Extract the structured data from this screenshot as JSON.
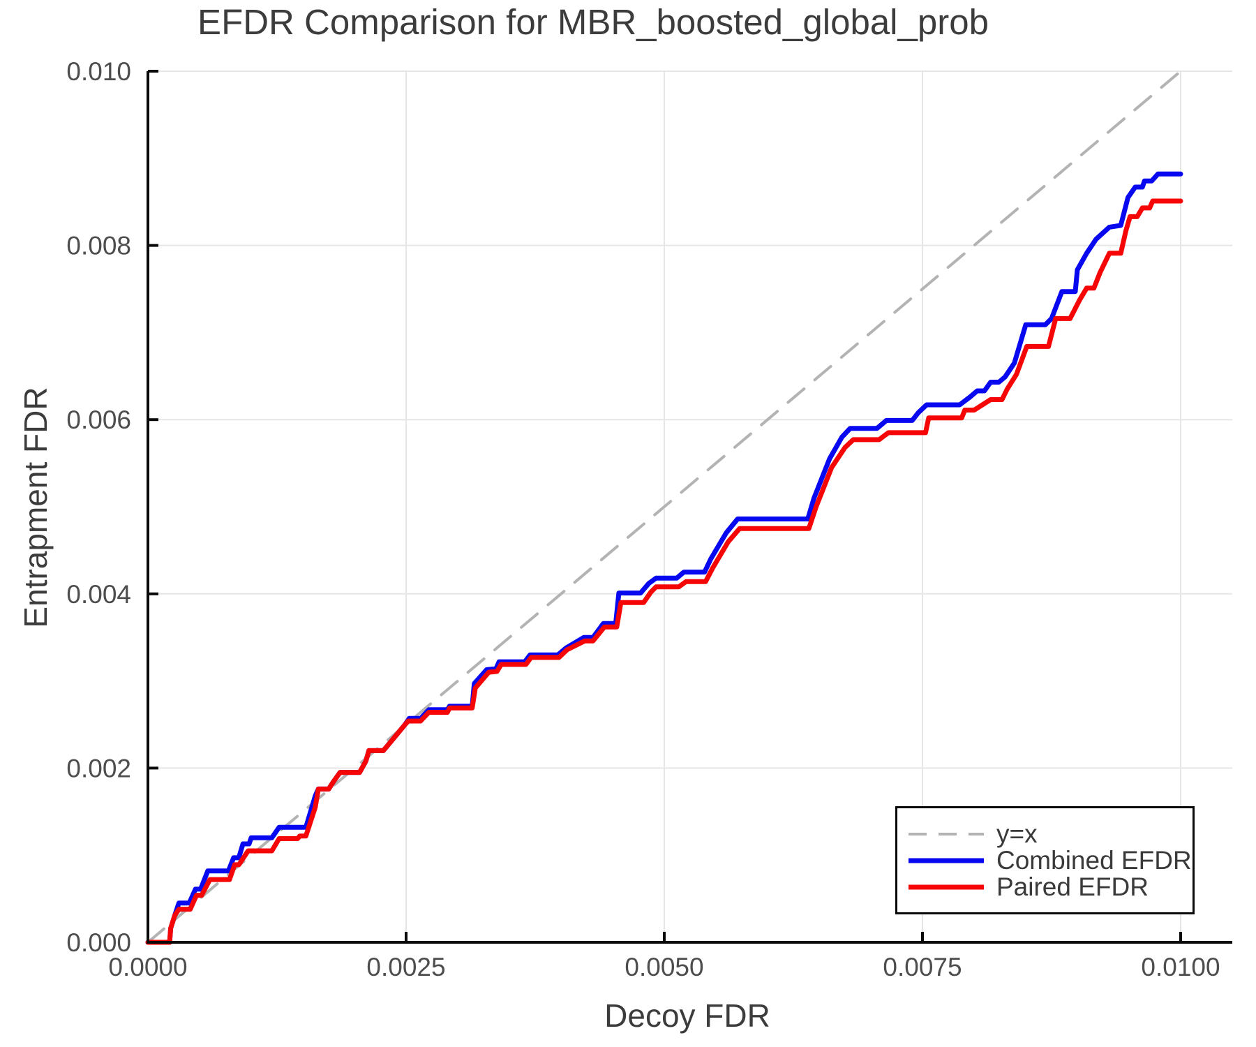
{
  "figure": {
    "background": "#ffffff",
    "text_color": "#3c3c3c",
    "tick_text_color": "#4d4d4d",
    "grid_color": "#e6e6e6",
    "spine_color": "#0a0a0a"
  },
  "chart_data": {
    "type": "line",
    "title": "EFDR Comparison for MBR_boosted_global_prob",
    "xlabel": "Decoy FDR",
    "ylabel": "Entrapment FDR",
    "xlim": [
      0,
      0.0105
    ],
    "ylim": [
      0,
      0.01
    ],
    "grid": true,
    "x_ticks": {
      "values": [
        0,
        0.0025,
        0.005,
        0.0075,
        0.01
      ],
      "labels": [
        "0.0000",
        "0.0025",
        "0.0050",
        "0.0075",
        "0.0100"
      ]
    },
    "y_ticks": {
      "values": [
        0,
        0.002,
        0.004,
        0.006,
        0.008,
        0.01
      ],
      "labels": [
        "0.000",
        "0.002",
        "0.004",
        "0.006",
        "0.008",
        "0.010"
      ]
    },
    "legend": {
      "position": "lower right",
      "entries": [
        "y=x",
        "Combined EFDR",
        "Paired EFDR"
      ]
    },
    "series": [
      {
        "name": "y=x",
        "style": "dashed",
        "color": "#b3b3b3",
        "width": 4,
        "points": [
          [
            0,
            0
          ],
          [
            0.01,
            0.01
          ]
        ]
      },
      {
        "name": "Combined EFDR",
        "style": "solid",
        "color": "#0808f0",
        "width": 7,
        "points": [
          [
            0,
            0
          ],
          [
            0.00021,
            0
          ],
          [
            0.00022,
            0.00016
          ],
          [
            0.00026,
            0.00031
          ],
          [
            0.0003,
            0.00045
          ],
          [
            0.0004,
            0.00045
          ],
          [
            0.00046,
            0.00061
          ],
          [
            0.00051,
            0.00061
          ],
          [
            0.00058,
            0.00082
          ],
          [
            0.00078,
            0.00082
          ],
          [
            0.00083,
            0.00097
          ],
          [
            0.00088,
            0.00097
          ],
          [
            0.00092,
            0.00113
          ],
          [
            0.00098,
            0.00113
          ],
          [
            0.001,
            0.0012
          ],
          [
            0.0012,
            0.0012
          ],
          [
            0.00127,
            0.00132
          ],
          [
            0.00153,
            0.00132
          ],
          [
            0.00162,
            0.00168
          ],
          [
            0.00165,
            0.00176
          ],
          [
            0.00175,
            0.00176
          ],
          [
            0.0018,
            0.00185
          ],
          [
            0.00186,
            0.00195
          ],
          [
            0.00205,
            0.00195
          ],
          [
            0.00211,
            0.00208
          ],
          [
            0.00214,
            0.0022
          ],
          [
            0.00228,
            0.0022
          ],
          [
            0.00235,
            0.0023
          ],
          [
            0.00249,
            0.0025
          ],
          [
            0.00253,
            0.00257
          ],
          [
            0.00264,
            0.00257
          ],
          [
            0.00272,
            0.00267
          ],
          [
            0.0029,
            0.00267
          ],
          [
            0.00292,
            0.00271
          ],
          [
            0.00314,
            0.00271
          ],
          [
            0.00316,
            0.00297
          ],
          [
            0.00328,
            0.00313
          ],
          [
            0.00337,
            0.00314
          ],
          [
            0.0034,
            0.00322
          ],
          [
            0.00365,
            0.00322
          ],
          [
            0.0037,
            0.0033
          ],
          [
            0.00397,
            0.0033
          ],
          [
            0.00405,
            0.00338
          ],
          [
            0.00422,
            0.0035
          ],
          [
            0.00431,
            0.0035
          ],
          [
            0.00441,
            0.00366
          ],
          [
            0.00453,
            0.00366
          ],
          [
            0.00456,
            0.00401
          ],
          [
            0.00477,
            0.00401
          ],
          [
            0.00485,
            0.00412
          ],
          [
            0.00492,
            0.00418
          ],
          [
            0.00512,
            0.00418
          ],
          [
            0.00519,
            0.00425
          ],
          [
            0.00539,
            0.00425
          ],
          [
            0.00545,
            0.0044
          ],
          [
            0.0056,
            0.0047
          ],
          [
            0.00571,
            0.00486
          ],
          [
            0.00639,
            0.00486
          ],
          [
            0.00645,
            0.0051
          ],
          [
            0.0066,
            0.00555
          ],
          [
            0.00672,
            0.0058
          ],
          [
            0.0068,
            0.0059
          ],
          [
            0.00706,
            0.0059
          ],
          [
            0.00715,
            0.00599
          ],
          [
            0.0074,
            0.00599
          ],
          [
            0.00746,
            0.00608
          ],
          [
            0.00754,
            0.00617
          ],
          [
            0.00786,
            0.00617
          ],
          [
            0.00796,
            0.00626
          ],
          [
            0.00803,
            0.00633
          ],
          [
            0.0081,
            0.00633
          ],
          [
            0.00816,
            0.00643
          ],
          [
            0.00824,
            0.00643
          ],
          [
            0.0083,
            0.00649
          ],
          [
            0.00839,
            0.00665
          ],
          [
            0.00847,
            0.00697
          ],
          [
            0.0085,
            0.00709
          ],
          [
            0.00869,
            0.00709
          ],
          [
            0.00875,
            0.00716
          ],
          [
            0.00885,
            0.00747
          ],
          [
            0.00898,
            0.00747
          ],
          [
            0.009,
            0.00772
          ],
          [
            0.00909,
            0.00791
          ],
          [
            0.00918,
            0.00807
          ],
          [
            0.00931,
            0.00821
          ],
          [
            0.00942,
            0.00823
          ],
          [
            0.00949,
            0.00855
          ],
          [
            0.00956,
            0.00867
          ],
          [
            0.00963,
            0.00867
          ],
          [
            0.00965,
            0.00874
          ],
          [
            0.00972,
            0.00874
          ],
          [
            0.00978,
            0.00882
          ],
          [
            0.01,
            0.00882
          ]
        ]
      },
      {
        "name": "Paired EFDR",
        "style": "solid",
        "color": "#f50505",
        "width": 7,
        "points": [
          [
            0,
            0
          ],
          [
            0.00021,
            0
          ],
          [
            0.00022,
            0.00016
          ],
          [
            0.00026,
            0.00031
          ],
          [
            0.0003,
            0.00038
          ],
          [
            0.00041,
            0.00038
          ],
          [
            0.00047,
            0.00054
          ],
          [
            0.00052,
            0.00054
          ],
          [
            0.0006,
            0.00072
          ],
          [
            0.00079,
            0.00072
          ],
          [
            0.00084,
            0.00089
          ],
          [
            0.00088,
            0.00089
          ],
          [
            0.00097,
            0.00105
          ],
          [
            0.0012,
            0.00105
          ],
          [
            0.00127,
            0.00119
          ],
          [
            0.00145,
            0.00119
          ],
          [
            0.00147,
            0.00122
          ],
          [
            0.00153,
            0.00122
          ],
          [
            0.00162,
            0.00155
          ],
          [
            0.00165,
            0.00176
          ],
          [
            0.00175,
            0.00176
          ],
          [
            0.0018,
            0.00185
          ],
          [
            0.00186,
            0.00195
          ],
          [
            0.00205,
            0.00195
          ],
          [
            0.00211,
            0.00208
          ],
          [
            0.00214,
            0.0022
          ],
          [
            0.00228,
            0.0022
          ],
          [
            0.00235,
            0.0023
          ],
          [
            0.00249,
            0.0025
          ],
          [
            0.00252,
            0.00254
          ],
          [
            0.00264,
            0.00254
          ],
          [
            0.00272,
            0.00264
          ],
          [
            0.0029,
            0.00264
          ],
          [
            0.00292,
            0.00269
          ],
          [
            0.00314,
            0.00269
          ],
          [
            0.00317,
            0.00292
          ],
          [
            0.0033,
            0.0031
          ],
          [
            0.00338,
            0.00311
          ],
          [
            0.00342,
            0.00319
          ],
          [
            0.00366,
            0.00319
          ],
          [
            0.00371,
            0.00327
          ],
          [
            0.00398,
            0.00327
          ],
          [
            0.00406,
            0.00336
          ],
          [
            0.00423,
            0.00346
          ],
          [
            0.00431,
            0.00346
          ],
          [
            0.00442,
            0.00362
          ],
          [
            0.00454,
            0.00362
          ],
          [
            0.00458,
            0.0039
          ],
          [
            0.0048,
            0.0039
          ],
          [
            0.00487,
            0.00402
          ],
          [
            0.00492,
            0.00408
          ],
          [
            0.00514,
            0.00408
          ],
          [
            0.00521,
            0.00414
          ],
          [
            0.0054,
            0.00414
          ],
          [
            0.00547,
            0.0043
          ],
          [
            0.00562,
            0.0046
          ],
          [
            0.00573,
            0.00475
          ],
          [
            0.0064,
            0.00475
          ],
          [
            0.00647,
            0.005
          ],
          [
            0.00662,
            0.00545
          ],
          [
            0.00675,
            0.00568
          ],
          [
            0.00683,
            0.00577
          ],
          [
            0.00708,
            0.00577
          ],
          [
            0.00717,
            0.00585
          ],
          [
            0.00753,
            0.00585
          ],
          [
            0.00756,
            0.00602
          ],
          [
            0.00788,
            0.00602
          ],
          [
            0.00791,
            0.00611
          ],
          [
            0.008,
            0.00611
          ],
          [
            0.00816,
            0.00623
          ],
          [
            0.00827,
            0.00623
          ],
          [
            0.00832,
            0.00635
          ],
          [
            0.00841,
            0.00652
          ],
          [
            0.00851,
            0.00684
          ],
          [
            0.00872,
            0.00684
          ],
          [
            0.00879,
            0.00716
          ],
          [
            0.00893,
            0.00716
          ],
          [
            0.00902,
            0.00737
          ],
          [
            0.00909,
            0.00751
          ],
          [
            0.00916,
            0.00751
          ],
          [
            0.00922,
            0.00769
          ],
          [
            0.00931,
            0.00791
          ],
          [
            0.00942,
            0.00791
          ],
          [
            0.00947,
            0.00817
          ],
          [
            0.00951,
            0.00833
          ],
          [
            0.00958,
            0.00833
          ],
          [
            0.00963,
            0.00843
          ],
          [
            0.0097,
            0.00843
          ],
          [
            0.00973,
            0.00851
          ],
          [
            0.01,
            0.00851
          ]
        ]
      }
    ]
  }
}
